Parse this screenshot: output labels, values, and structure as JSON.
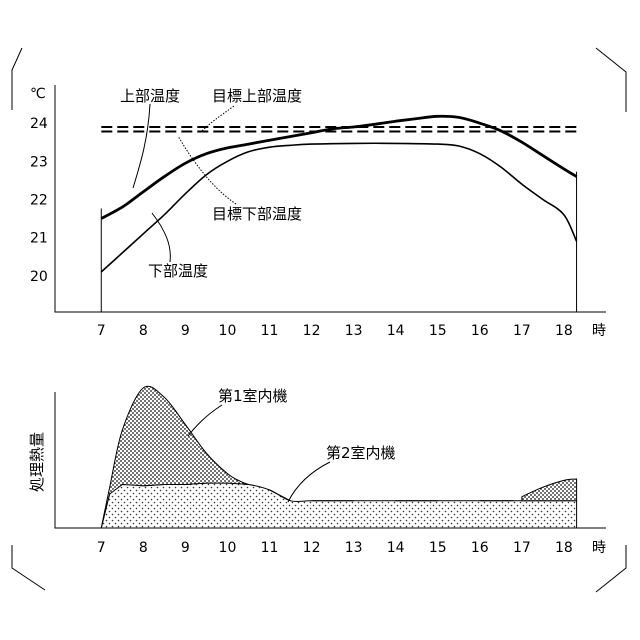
{
  "chart_data": [
    {
      "type": "line",
      "ylabel": "℃",
      "xunit": "時",
      "xticks": [
        7,
        8,
        9,
        10,
        11,
        12,
        13,
        14,
        15,
        16,
        17,
        18
      ],
      "yticks": [
        20,
        21,
        22,
        23,
        24
      ],
      "xlim": [
        5.9,
        19.0
      ],
      "ylim": [
        19.05,
        25.0
      ],
      "series": [
        {
          "name": "上部温度",
          "style": "thick",
          "x": [
            7.0,
            7.5,
            8.0,
            8.5,
            9.0,
            9.5,
            10.0,
            10.5,
            11.0,
            11.5,
            12.0,
            12.5,
            13.0,
            13.5,
            14.0,
            14.5,
            15.0,
            15.5,
            16.0,
            16.5,
            17.0,
            17.5,
            18.0,
            18.3
          ],
          "y": [
            21.5,
            21.8,
            22.2,
            22.6,
            22.95,
            23.2,
            23.35,
            23.45,
            23.55,
            23.65,
            23.75,
            23.85,
            23.9,
            23.97,
            24.05,
            24.12,
            24.18,
            24.15,
            24.0,
            23.8,
            23.5,
            23.15,
            22.8,
            22.6
          ]
        },
        {
          "name": "下部温度",
          "style": "thin",
          "x": [
            7.0,
            7.5,
            8.0,
            8.5,
            9.0,
            9.5,
            10.0,
            10.5,
            11.0,
            11.5,
            12.0,
            13.0,
            14.0,
            15.0,
            15.5,
            16.0,
            16.5,
            17.0,
            17.5,
            18.0,
            18.3
          ],
          "y": [
            20.1,
            20.6,
            21.1,
            21.6,
            22.15,
            22.65,
            23.0,
            23.25,
            23.37,
            23.42,
            23.45,
            23.47,
            23.47,
            23.45,
            23.4,
            23.2,
            22.85,
            22.4,
            22.0,
            21.6,
            20.9
          ]
        },
        {
          "name": "目標上部温度",
          "style": "dashed",
          "x": [
            7.0,
            18.3
          ],
          "y": [
            23.9,
            23.9
          ]
        },
        {
          "name": "目標下部温度",
          "style": "dashed",
          "x": [
            7.0,
            18.3
          ],
          "y": [
            23.78,
            23.78
          ]
        }
      ]
    },
    {
      "type": "area",
      "ylabel": "処理熱量",
      "xunit": "時",
      "xticks": [
        7,
        8,
        9,
        10,
        11,
        12,
        13,
        14,
        15,
        16,
        17,
        18
      ],
      "xlim": [
        5.9,
        19.0
      ],
      "ylim": [
        0,
        10
      ],
      "stacked": true,
      "series": [
        {
          "name": "第2室内機",
          "pattern": "light-dots",
          "x": [
            7.0,
            7.2,
            7.5,
            8.0,
            8.5,
            9.0,
            9.5,
            10.0,
            10.5,
            11.0,
            11.5,
            12.0,
            13.0,
            14.0,
            15.0,
            16.0,
            16.8,
            17.0,
            17.5,
            18.0,
            18.3
          ],
          "y": [
            0.0,
            2.5,
            3.2,
            3.1,
            3.2,
            3.2,
            3.3,
            3.3,
            3.2,
            2.8,
            2.0,
            2.0,
            2.0,
            2.0,
            2.0,
            2.0,
            2.0,
            2.0,
            2.0,
            2.0,
            2.0
          ]
        },
        {
          "name": "第1室内機",
          "pattern": "dense-dots",
          "x": [
            7.0,
            7.2,
            7.5,
            8.0,
            8.5,
            9.0,
            9.5,
            10.0,
            10.3,
            10.5,
            11.0,
            16.8,
            17.0,
            17.5,
            18.0,
            18.3
          ],
          "y": [
            0.0,
            0.5,
            4.0,
            7.2,
            6.4,
            4.4,
            2.2,
            0.7,
            0.2,
            0.0,
            0.0,
            0.0,
            0.3,
            1.0,
            1.5,
            1.6
          ]
        }
      ]
    }
  ]
}
